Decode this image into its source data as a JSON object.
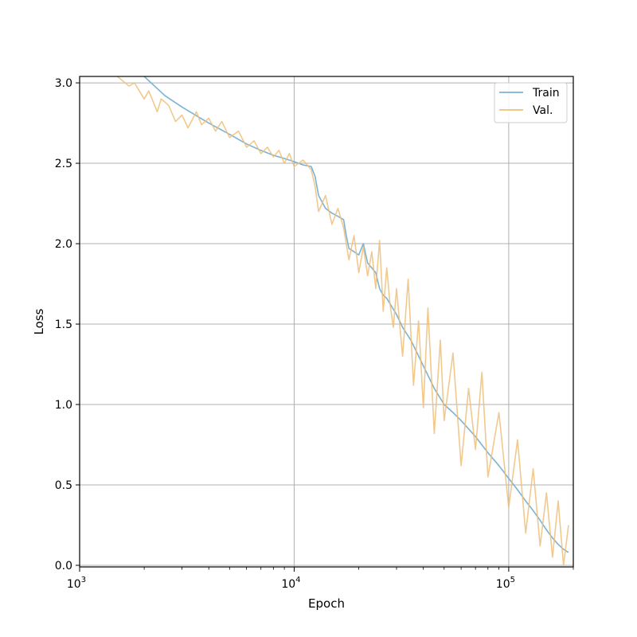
{
  "chart_data": {
    "type": "line",
    "title": "",
    "xlabel": "Epoch",
    "ylabel": "Loss",
    "xscale": "log",
    "xlim": [
      1000,
      200000
    ],
    "ylim": [
      -0.01,
      3.04
    ],
    "grid": true,
    "legend_position": "top-right",
    "x_ticks": [
      {
        "value": 1000,
        "base": "10",
        "exp": "3"
      },
      {
        "value": 10000,
        "base": "10",
        "exp": "4"
      },
      {
        "value": 100000,
        "base": "10",
        "exp": "5"
      }
    ],
    "y_ticks": [
      {
        "value": 0.0,
        "label": "0.0"
      },
      {
        "value": 0.5,
        "label": "0.5"
      },
      {
        "value": 1.0,
        "label": "1.0"
      },
      {
        "value": 1.5,
        "label": "1.5"
      },
      {
        "value": 2.0,
        "label": "2.0"
      },
      {
        "value": 2.5,
        "label": "2.5"
      },
      {
        "value": 3.0,
        "label": "3.0"
      }
    ],
    "series": [
      {
        "name": "Train",
        "color": "#7ab3d6",
        "x": [
          2000,
          2500,
          3000,
          4000,
          5000,
          6000,
          7000,
          8000,
          9000,
          10000,
          11000,
          12000,
          12500,
          13000,
          14000,
          15000,
          16000,
          17000,
          17500,
          18000,
          19000,
          20000,
          21000,
          22000,
          24000,
          25000,
          26000,
          27000,
          30000,
          32000,
          35000,
          40000,
          45000,
          50000,
          55000,
          60000,
          70000,
          80000,
          90000,
          100000,
          110000,
          120000,
          130000,
          140000,
          150000,
          160000,
          170000,
          180000,
          190000
        ],
        "y": [
          3.04,
          2.92,
          2.85,
          2.75,
          2.68,
          2.62,
          2.58,
          2.55,
          2.53,
          2.51,
          2.49,
          2.48,
          2.42,
          2.3,
          2.22,
          2.19,
          2.17,
          2.15,
          2.05,
          1.97,
          1.95,
          1.93,
          2.0,
          1.88,
          1.82,
          1.72,
          1.68,
          1.66,
          1.56,
          1.48,
          1.4,
          1.24,
          1.1,
          1.0,
          0.95,
          0.9,
          0.8,
          0.7,
          0.62,
          0.54,
          0.47,
          0.4,
          0.34,
          0.28,
          0.22,
          0.17,
          0.13,
          0.1,
          0.08
        ]
      },
      {
        "name": "Val.",
        "color": "#eec07a",
        "x": [
          1500,
          1700,
          1800,
          2000,
          2100,
          2300,
          2400,
          2500,
          2600,
          2800,
          3000,
          3200,
          3500,
          3700,
          4000,
          4300,
          4600,
          5000,
          5500,
          6000,
          6500,
          7000,
          7500,
          8000,
          8500,
          9000,
          9500,
          10000,
          11000,
          12000,
          12500,
          13000,
          14000,
          15000,
          16000,
          17000,
          18000,
          19000,
          20000,
          21000,
          22000,
          23000,
          24000,
          25000,
          26000,
          27000,
          28000,
          29000,
          30000,
          32000,
          34000,
          36000,
          38000,
          40000,
          42000,
          45000,
          48000,
          50000,
          55000,
          60000,
          65000,
          70000,
          75000,
          80000,
          90000,
          100000,
          110000,
          120000,
          130000,
          140000,
          150000,
          160000,
          170000,
          180000,
          190000
        ],
        "y": [
          3.04,
          2.98,
          3.0,
          2.9,
          2.95,
          2.82,
          2.9,
          2.88,
          2.86,
          2.76,
          2.8,
          2.72,
          2.82,
          2.74,
          2.78,
          2.7,
          2.76,
          2.66,
          2.7,
          2.6,
          2.64,
          2.56,
          2.6,
          2.54,
          2.58,
          2.5,
          2.56,
          2.48,
          2.52,
          2.46,
          2.36,
          2.2,
          2.3,
          2.12,
          2.22,
          2.1,
          1.9,
          2.05,
          1.82,
          1.98,
          1.8,
          1.95,
          1.72,
          2.02,
          1.58,
          1.85,
          1.62,
          1.48,
          1.72,
          1.3,
          1.78,
          1.12,
          1.52,
          0.98,
          1.6,
          0.82,
          1.4,
          0.9,
          1.32,
          0.62,
          1.1,
          0.72,
          1.2,
          0.55,
          0.95,
          0.36,
          0.78,
          0.2,
          0.6,
          0.12,
          0.45,
          0.05,
          0.4,
          0.0,
          0.25
        ]
      }
    ]
  }
}
